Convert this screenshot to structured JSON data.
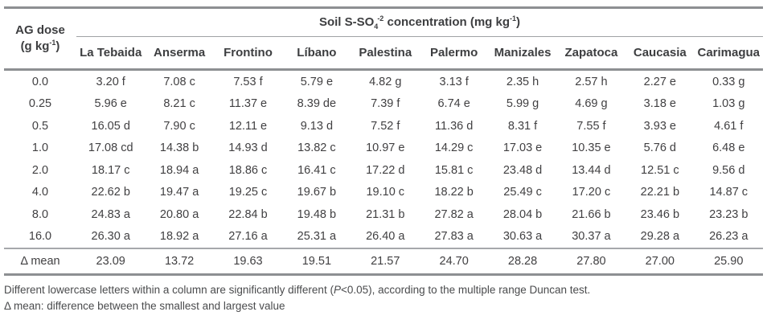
{
  "table": {
    "corner": {
      "line1": "AG dose",
      "line2_pre": "(g kg",
      "line2_sup": "-1",
      "line2_end": ")"
    },
    "span_title": {
      "pre": "Soil S-SO",
      "sub": "4",
      "sup": "-2",
      "mid": " concentration (mg kg",
      "unit_sup": "-1",
      "end": ")"
    },
    "columns": [
      "La Tebaida",
      "Anserma",
      "Frontino",
      "Líbano",
      "Palestina",
      "Palermo",
      "Manizales",
      "Zapatoca",
      "Caucasia",
      "Carimagua"
    ],
    "rows": [
      {
        "dose": "0.0",
        "values": [
          "3.20 f",
          "7.08 c",
          "7.53 f",
          "5.79 e",
          "4.82 g",
          "3.13 f",
          "2.35 h",
          "2.57 h",
          "2.27 e",
          "0.33 g"
        ]
      },
      {
        "dose": "0.25",
        "values": [
          "5.96 e",
          "8.21 c",
          "11.37 e",
          "8.39 de",
          "7.39 f",
          "6.74 e",
          "5.99 g",
          "4.69 g",
          "3.18 e",
          "1.03 g"
        ]
      },
      {
        "dose": "0.5",
        "values": [
          "16.05 d",
          "7.90 c",
          "12.11 e",
          "9.13 d",
          "7.52 f",
          "11.36 d",
          "8.31 f",
          "7.55 f",
          "3.93 e",
          "4.61 f"
        ]
      },
      {
        "dose": "1.0",
        "values": [
          "17.08 cd",
          "14.38 b",
          "14.93 d",
          "13.82 c",
          "10.97 e",
          "14.29 c",
          "17.03 e",
          "10.35 e",
          "5.76 d",
          "6.48 e"
        ]
      },
      {
        "dose": "2.0",
        "values": [
          "18.17 c",
          "18.94 a",
          "18.86 c",
          "16.41 c",
          "17.22 d",
          "15.81 c",
          "23.48 d",
          "13.44 d",
          "12.51 c",
          "9.56 d"
        ]
      },
      {
        "dose": "4.0",
        "values": [
          "22.62 b",
          "19.47 a",
          "19.25 c",
          "19.67 b",
          "19.10 c",
          "18.22 b",
          "25.49 c",
          "17.20 c",
          "22.21 b",
          "14.87 c"
        ]
      },
      {
        "dose": "8.0",
        "values": [
          "24.83 a",
          "20.80 a",
          "22.84 b",
          "19.48 b",
          "21.31 b",
          "27.82 a",
          "28.04 b",
          "21.66 b",
          "23.46 b",
          "23.23 b"
        ]
      },
      {
        "dose": "16.0",
        "values": [
          "26.30 a",
          "18.92 a",
          "27.16 a",
          "25.31 a",
          "26.40 a",
          "27.83 a",
          "30.63 a",
          "30.37 a",
          "29.28 a",
          "26.23 a"
        ]
      }
    ],
    "summary": {
      "label": "Δ mean",
      "values": [
        "23.09",
        "13.72",
        "19.63",
        "19.51",
        "21.57",
        "24.70",
        "28.28",
        "27.80",
        "27.00",
        "25.90"
      ]
    }
  },
  "notes": {
    "note1_pre": "Different lowercase letters within a column are significantly different (",
    "note1_italic": "P",
    "note1_post": "<0.05), according to the multiple range Duncan test.",
    "note2": "Δ mean: difference between the smallest and largest value"
  },
  "colors": {
    "text": "#414042",
    "line_heavy": "#8d8f92",
    "line_light": "#a6a8ab"
  }
}
